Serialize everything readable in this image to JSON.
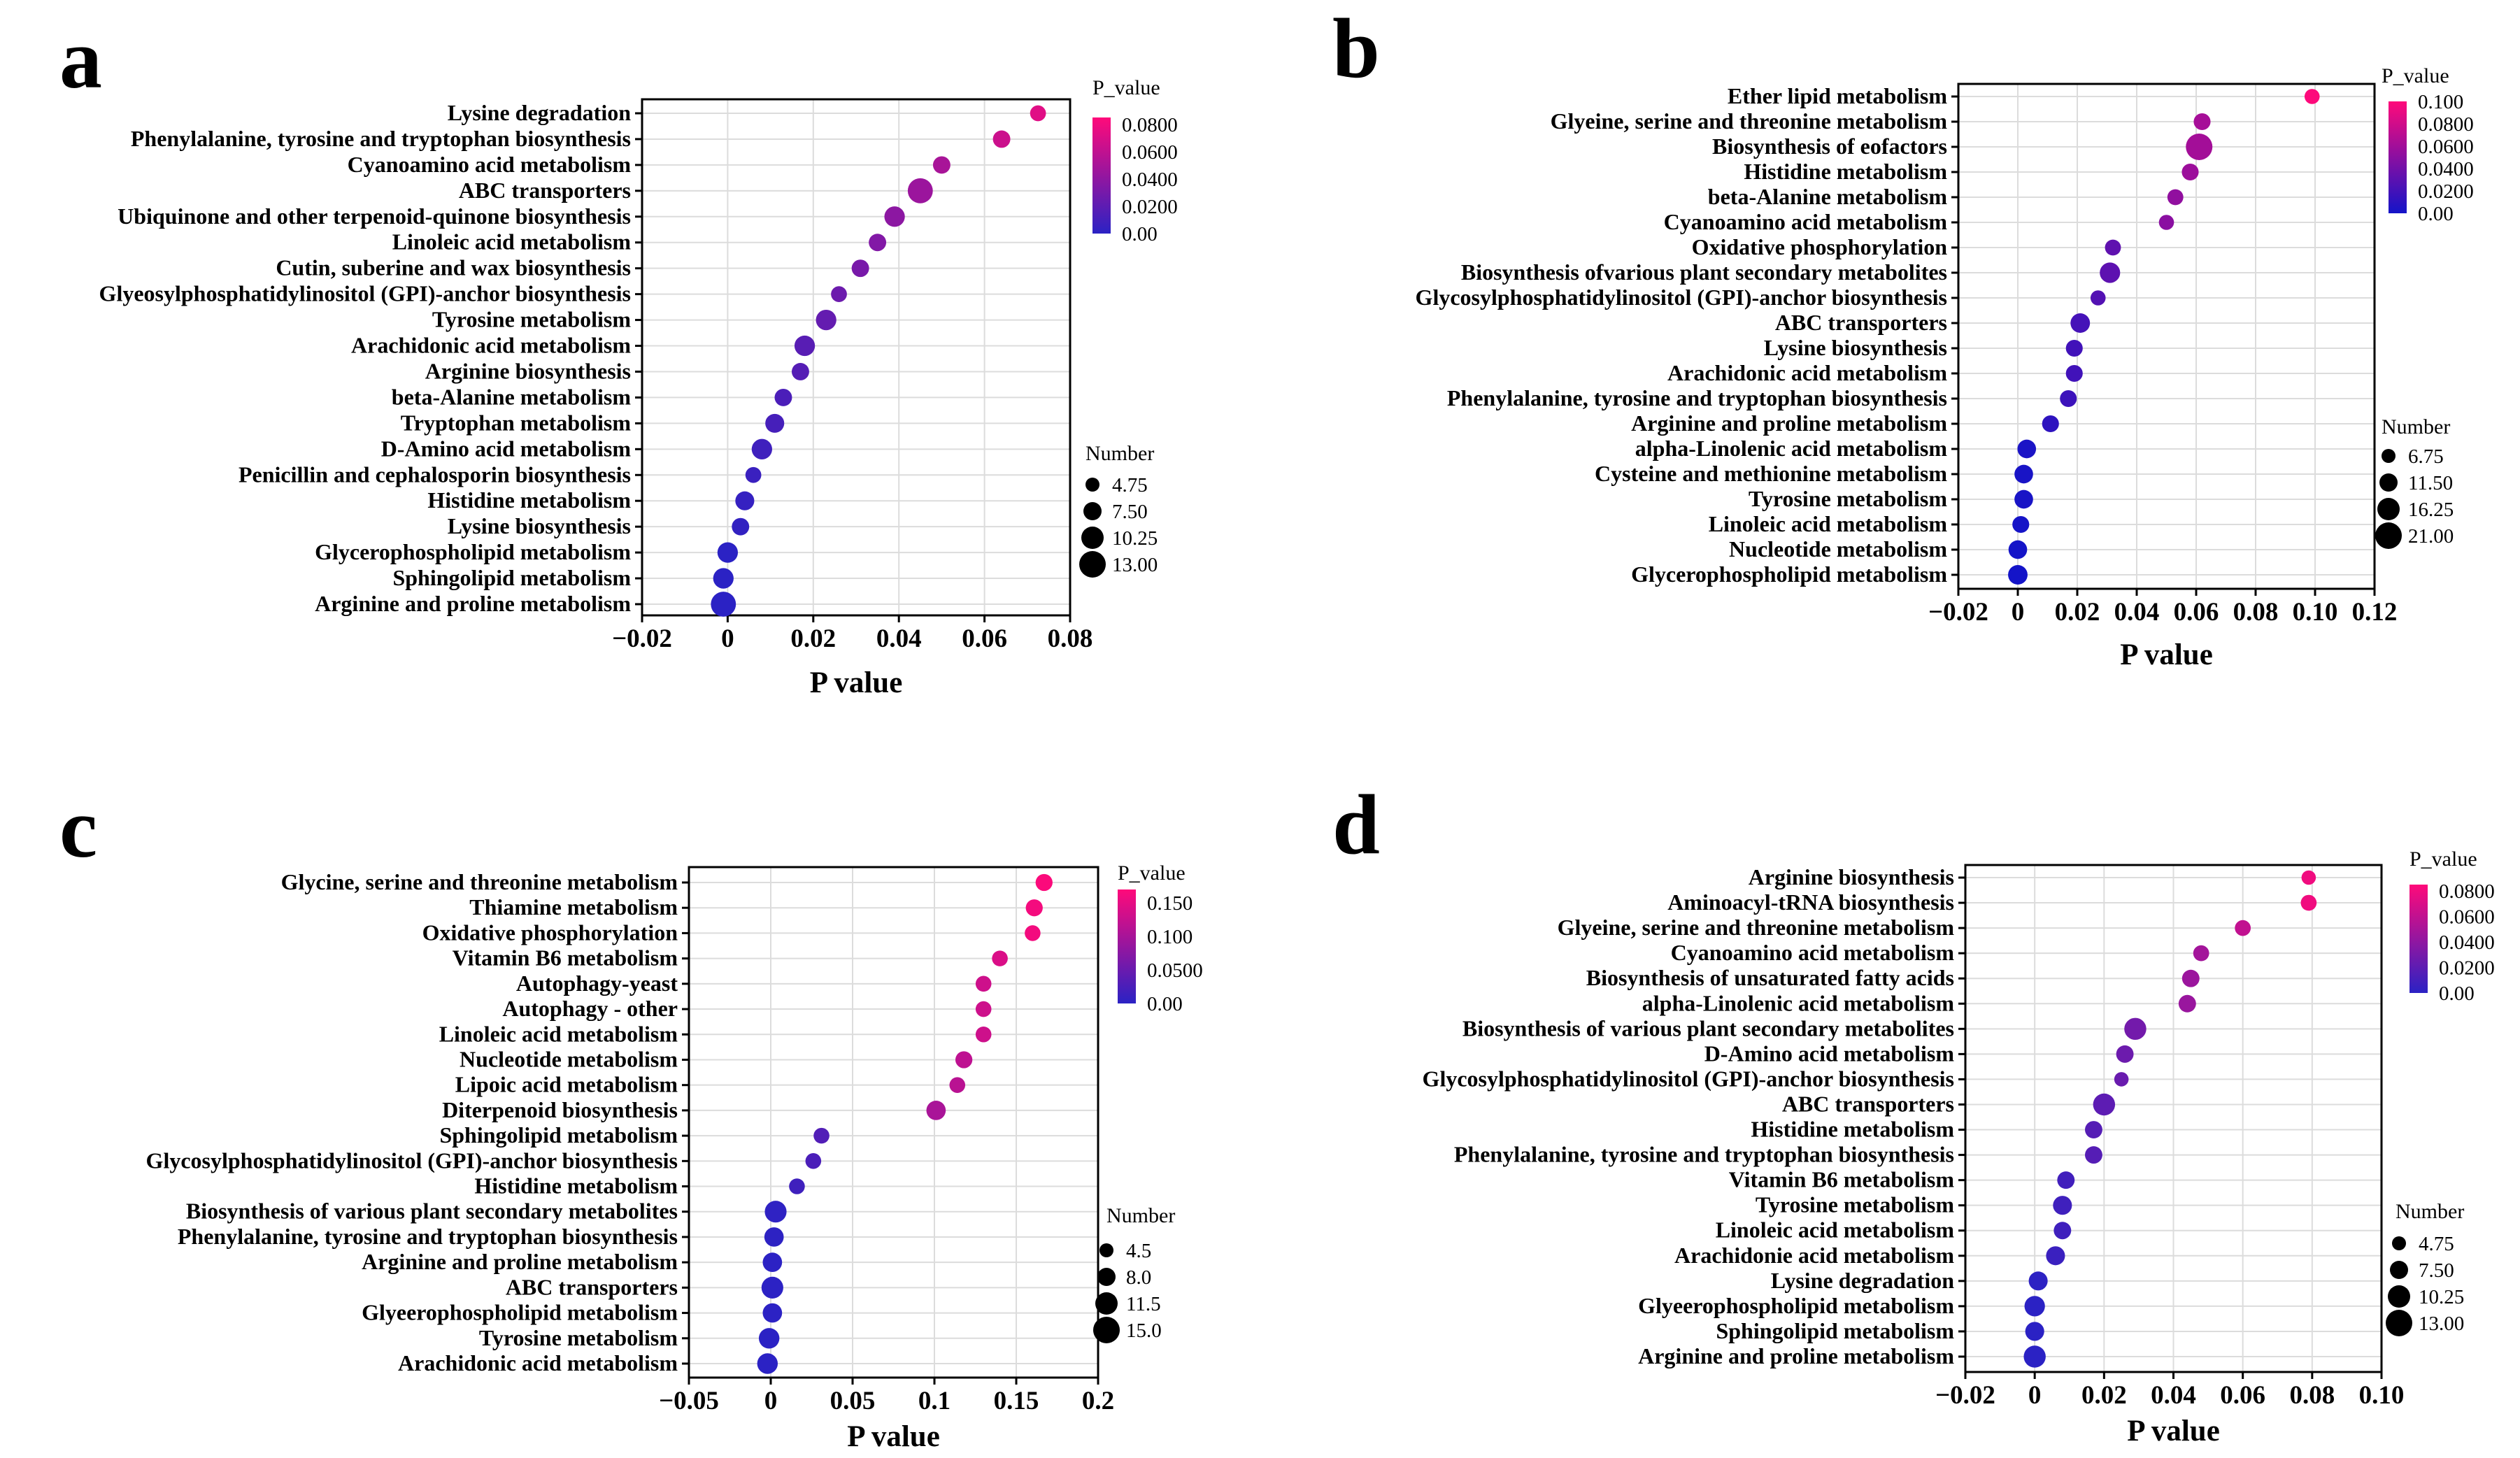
{
  "chart_data": [
    {
      "panel": "a",
      "type": "scatter",
      "xlabel": "P value",
      "xlim": [
        -0.02,
        0.08
      ],
      "xticks": [
        -0.02,
        0,
        0.02,
        0.04,
        0.06,
        0.08
      ],
      "xtick_labels": [
        "−0.02",
        "0",
        "0.02",
        "0.04",
        "0.06",
        "0.08"
      ],
      "grid": true,
      "color_legend": {
        "title": "P_value",
        "min": 0,
        "max": 0.085,
        "ticks": [
          0.08,
          0.06,
          0.04,
          0.02,
          0
        ],
        "tick_labels": [
          "0.0800",
          "0.0600",
          "0.0400",
          "0.0200",
          "0.00"
        ]
      },
      "size_legend": {
        "title": "Number",
        "values": [
          4.75,
          7.5,
          10.25,
          13
        ],
        "labels": [
          "4.75",
          "7.50",
          "10.25",
          "13.00"
        ]
      },
      "color_low": "#2b22c4",
      "color_high": "#ff0a7a",
      "terms": [
        {
          "label": "Lysine degradation",
          "p": 0.0725,
          "n": 6
        },
        {
          "label": "Phenylalanine, tyrosine and tryptophan biosynthesis",
          "p": 0.064,
          "n": 7
        },
        {
          "label": "Cyanoamino acid metabolism",
          "p": 0.05,
          "n": 7
        },
        {
          "label": "ABC transporters",
          "p": 0.045,
          "n": 12
        },
        {
          "label": "Ubiquinone and other terpenoid-quinone biosynthesis",
          "p": 0.039,
          "n": 9
        },
        {
          "label": "Linoleic acid metabolism",
          "p": 0.035,
          "n": 7
        },
        {
          "label": "Cutin, suberine and wax biosynthesis",
          "p": 0.031,
          "n": 7
        },
        {
          "label": "Glyeosylphosphatidylinositol (GPI)-anchor biosynthesis",
          "p": 0.026,
          "n": 6
        },
        {
          "label": "Tyrosine metabolism",
          "p": 0.023,
          "n": 9
        },
        {
          "label": "Arachidonic acid metabolism",
          "p": 0.018,
          "n": 9
        },
        {
          "label": "Arginine biosynthesis",
          "p": 0.017,
          "n": 7
        },
        {
          "label": "beta-Alanine metabolism",
          "p": 0.013,
          "n": 7
        },
        {
          "label": "Tryptophan metabolism",
          "p": 0.011,
          "n": 8
        },
        {
          "label": "D-Amino acid metabolism",
          "p": 0.008,
          "n": 9
        },
        {
          "label": "Penicillin and cephalosporin biosynthesis",
          "p": 0.006,
          "n": 6
        },
        {
          "label": "Histidine metabolism",
          "p": 0.004,
          "n": 8
        },
        {
          "label": "Lysine biosynthesis",
          "p": 0.003,
          "n": 7
        },
        {
          "label": "Glycerophospholipid metabolism",
          "p": 0.0,
          "n": 9
        },
        {
          "label": "Sphingolipid metabolism",
          "p": -0.001,
          "n": 9
        },
        {
          "label": "Arginine and proline metabolism",
          "p": -0.001,
          "n": 12
        }
      ]
    },
    {
      "panel": "b",
      "type": "scatter",
      "xlabel": "P value",
      "xlim": [
        -0.02,
        0.12
      ],
      "xticks": [
        -0.02,
        0,
        0.02,
        0.04,
        0.06,
        0.08,
        0.1,
        0.12
      ],
      "xtick_labels": [
        "−0.02",
        "0",
        "0.02",
        "0.04",
        "0.06",
        "0.08",
        "0.10",
        "0.12"
      ],
      "grid": true,
      "color_legend": {
        "title": "P_value",
        "min": 0,
        "max": 0.1,
        "ticks": [
          0.1,
          0.08,
          0.06,
          0.04,
          0.02,
          0
        ],
        "tick_labels": [
          "0.100",
          "0.0800",
          "0.0600",
          "0.0400",
          "0.0200",
          "0.00"
        ]
      },
      "size_legend": {
        "title": "Number",
        "values": [
          6.75,
          11.5,
          16.25,
          21
        ],
        "labels": [
          "6.75",
          "11.50",
          "16.25",
          "21.00"
        ]
      },
      "color_low": "#1414c8",
      "color_high": "#ff0a7a",
      "terms": [
        {
          "label": "Ether lipid metabolism",
          "p": 0.099,
          "n": 8
        },
        {
          "label": "Glyeine, serine and threonine metabolism",
          "p": 0.062,
          "n": 10
        },
        {
          "label": "Biosynthesis of eofactors",
          "p": 0.061,
          "n": 21
        },
        {
          "label": "Histidine metabolism",
          "p": 0.058,
          "n": 10
        },
        {
          "label": "beta-Alanine metabolism",
          "p": 0.053,
          "n": 9
        },
        {
          "label": "Cyanoamino acid metabolism",
          "p": 0.05,
          "n": 8
        },
        {
          "label": "Oxidative phosphorylation",
          "p": 0.032,
          "n": 9
        },
        {
          "label": "Biosynthesis ofvarious plant secondary metabolites",
          "p": 0.031,
          "n": 14
        },
        {
          "label": "Glycosylphosphatidylinositol (GPI)-anchor biosynthesis",
          "p": 0.027,
          "n": 8
        },
        {
          "label": "ABC transporters",
          "p": 0.021,
          "n": 13
        },
        {
          "label": "Lysine biosynthesis",
          "p": 0.019,
          "n": 10
        },
        {
          "label": "Arachidonic acid metabolism",
          "p": 0.019,
          "n": 10
        },
        {
          "label": "Phenylalanine, tyrosine and tryptophan biosynthesis",
          "p": 0.017,
          "n": 10
        },
        {
          "label": "Arginine and proline metabolism",
          "p": 0.011,
          "n": 10
        },
        {
          "label": "alpha-Linolenic acid metabolism",
          "p": 0.003,
          "n": 12
        },
        {
          "label": "Cysteine and methionine metabolism",
          "p": 0.002,
          "n": 12
        },
        {
          "label": "Tyrosine metabolism",
          "p": 0.002,
          "n": 12
        },
        {
          "label": "Linoleic acid metabolism",
          "p": 0.001,
          "n": 10
        },
        {
          "label": "Nucleotide metabolism",
          "p": 0.0,
          "n": 12
        },
        {
          "label": "Glycerophospholipid metabolism",
          "p": 0.0,
          "n": 13
        }
      ]
    },
    {
      "panel": "c",
      "type": "scatter",
      "xlabel": "P value",
      "xlim": [
        -0.05,
        0.2
      ],
      "xticks": [
        -0.05,
        0,
        0.05,
        0.1,
        0.15,
        0.2
      ],
      "xtick_labels": [
        "−0.05",
        "0",
        "0.05",
        "0.1",
        "0.15",
        "0.2"
      ],
      "grid": true,
      "color_legend": {
        "title": "P_value",
        "min": 0,
        "max": 0.17,
        "ticks": [
          0.15,
          0.1,
          0.05,
          0
        ],
        "tick_labels": [
          "0.150",
          "0.100",
          "0.0500",
          "0.00"
        ]
      },
      "size_legend": {
        "title": "Number",
        "values": [
          4.5,
          8,
          11.5,
          15
        ],
        "labels": [
          "4.5",
          "8.0",
          "11.5",
          "15.0"
        ]
      },
      "color_low": "#2b22c4",
      "color_high": "#ff0a7a",
      "terms": [
        {
          "label": "Glycine, serine and threonine metabolism",
          "p": 0.167,
          "n": 7
        },
        {
          "label": "Thiamine metabolism",
          "p": 0.161,
          "n": 7
        },
        {
          "label": "Oxidative phosphorylation",
          "p": 0.16,
          "n": 6
        },
        {
          "label": "Vitamin B6 metabolism",
          "p": 0.14,
          "n": 6
        },
        {
          "label": "Autophagy-yeast",
          "p": 0.13,
          "n": 6
        },
        {
          "label": "Autophagy - other",
          "p": 0.13,
          "n": 6
        },
        {
          "label": "Linoleic acid metabolism",
          "p": 0.13,
          "n": 6
        },
        {
          "label": "Nucleotide metabolism",
          "p": 0.118,
          "n": 7
        },
        {
          "label": "Lipoic acid metabolism",
          "p": 0.114,
          "n": 6
        },
        {
          "label": "Diterpenoid biosynthesis",
          "p": 0.101,
          "n": 9
        },
        {
          "label": "Sphingolipid metabolism",
          "p": 0.031,
          "n": 6
        },
        {
          "label": "Glycosylphosphatidylinositol (GPI)-anchor biosynthesis",
          "p": 0.026,
          "n": 6
        },
        {
          "label": "Histidine metabolism",
          "p": 0.016,
          "n": 6
        },
        {
          "label": "Biosynthesis of various plant secondary metabolites",
          "p": 0.003,
          "n": 11
        },
        {
          "label": "Phenylalanine, tyrosine and tryptophan biosynthesis",
          "p": 0.002,
          "n": 9
        },
        {
          "label": "Arginine and proline metabolism",
          "p": 0.001,
          "n": 9
        },
        {
          "label": "ABC transporters",
          "p": 0.001,
          "n": 11
        },
        {
          "label": "Glyeerophospholipid metabolism",
          "p": 0.001,
          "n": 9
        },
        {
          "label": "Tyrosine metabolism",
          "p": -0.001,
          "n": 10
        },
        {
          "label": "Arachidonic acid metabolism",
          "p": -0.002,
          "n": 10
        }
      ]
    },
    {
      "panel": "d",
      "type": "scatter",
      "xlabel": "P value",
      "xlim": [
        -0.02,
        0.1
      ],
      "xticks": [
        -0.02,
        0,
        0.02,
        0.04,
        0.06,
        0.08,
        0.1
      ],
      "xtick_labels": [
        "−0.02",
        "0",
        "0.02",
        "0.04",
        "0.06",
        "0.08",
        "0.10"
      ],
      "grid": true,
      "color_legend": {
        "title": "P_value",
        "min": 0,
        "max": 0.085,
        "ticks": [
          0.08,
          0.06,
          0.04,
          0.02,
          0
        ],
        "tick_labels": [
          "0.0800",
          "0.0600",
          "0.0400",
          "0.0200",
          "0.00"
        ]
      },
      "size_legend": {
        "title": "Number",
        "values": [
          4.75,
          7.5,
          10.25,
          13
        ],
        "labels": [
          "4.75",
          "7.50",
          "10.25",
          "13.00"
        ]
      },
      "color_low": "#2b22c4",
      "color_high": "#ff0a7a",
      "terms": [
        {
          "label": "Arginine biosynthesis",
          "p": 0.079,
          "n": 5
        },
        {
          "label": "Aminoacyl-tRNA biosynthesis",
          "p": 0.079,
          "n": 6
        },
        {
          "label": "Glyeine, serine and threonine metabolism",
          "p": 0.06,
          "n": 6
        },
        {
          "label": "Cyanoamino acid metabolism",
          "p": 0.048,
          "n": 6
        },
        {
          "label": "Biosynthesis of unsaturated fatty acids",
          "p": 0.045,
          "n": 7
        },
        {
          "label": "alpha-Linolenic acid metabolism",
          "p": 0.044,
          "n": 7
        },
        {
          "label": "Biosynthesis of various plant secondary metabolites",
          "p": 0.029,
          "n": 10
        },
        {
          "label": "D-Amino acid metabolism",
          "p": 0.026,
          "n": 7
        },
        {
          "label": "Glycosylphosphatidylinositol (GPI)-anchor biosynthesis",
          "p": 0.025,
          "n": 5
        },
        {
          "label": "ABC transporters",
          "p": 0.02,
          "n": 10
        },
        {
          "label": "Histidine metabolism",
          "p": 0.017,
          "n": 7
        },
        {
          "label": "Phenylalanine, tyrosine and tryptophan biosynthesis",
          "p": 0.017,
          "n": 7
        },
        {
          "label": "Vitamin B6 metabolism",
          "p": 0.009,
          "n": 7
        },
        {
          "label": "Tyrosine metabolism",
          "p": 0.008,
          "n": 8
        },
        {
          "label": "Linoleic acid metabolism",
          "p": 0.008,
          "n": 7
        },
        {
          "label": "Arachidonie acid metabolism",
          "p": 0.006,
          "n": 8
        },
        {
          "label": "Lysine degradation",
          "p": 0.001,
          "n": 8
        },
        {
          "label": "Glyeerophospholipid metabolism",
          "p": 0.0,
          "n": 9
        },
        {
          "label": "Sphingolipid metabolism",
          "p": 0.0,
          "n": 8
        },
        {
          "label": "Arginine and proline metabolism",
          "p": 0.0,
          "n": 10
        }
      ]
    }
  ]
}
